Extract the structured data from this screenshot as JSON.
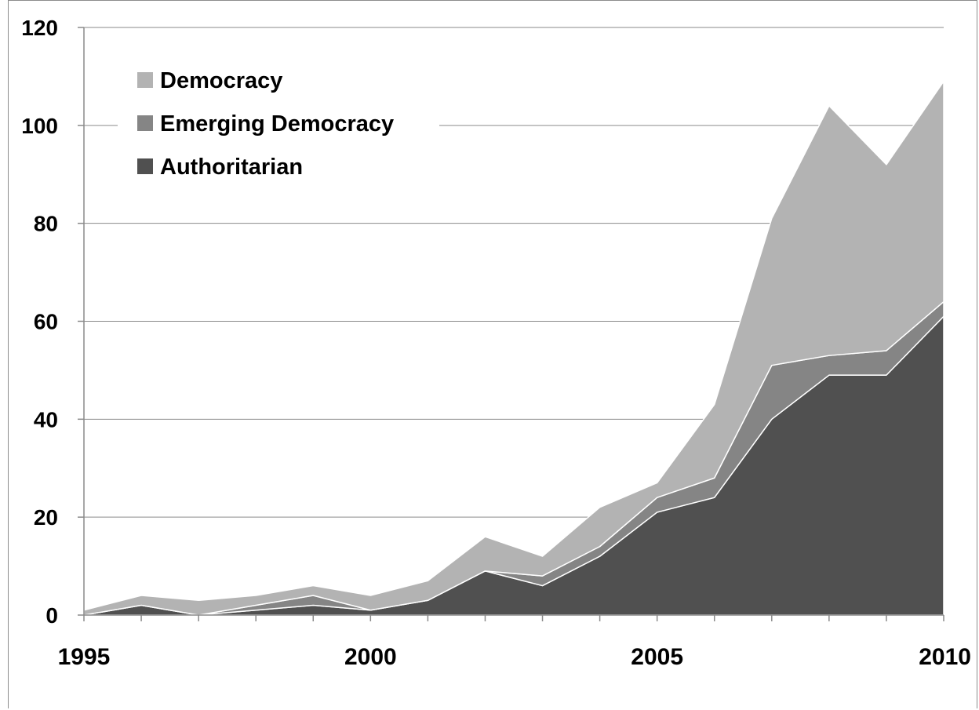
{
  "chart_data": {
    "type": "area",
    "stacked": true,
    "x": [
      1995,
      1996,
      1997,
      1998,
      1999,
      2000,
      2001,
      2002,
      2003,
      2004,
      2005,
      2006,
      2007,
      2008,
      2009,
      2010
    ],
    "series": [
      {
        "name": "Authoritarian",
        "color": "#505050",
        "values": [
          0,
          2,
          0,
          1,
          2,
          1,
          3,
          9,
          6,
          12,
          21,
          24,
          40,
          49,
          49,
          61
        ]
      },
      {
        "name": "Emerging Democracy",
        "color": "#858585",
        "values": [
          0,
          0,
          0,
          1,
          2,
          0,
          0,
          0,
          2,
          2,
          3,
          4,
          11,
          4,
          5,
          3
        ]
      },
      {
        "name": "Democracy",
        "color": "#b3b3b3",
        "values": [
          1,
          2,
          3,
          2,
          2,
          3,
          4,
          7,
          4,
          8,
          3,
          15,
          30,
          51,
          38,
          45
        ]
      }
    ],
    "yticks": [
      0,
      20,
      40,
      60,
      80,
      100,
      120
    ],
    "xticks": [
      1995,
      2000,
      2005,
      2010
    ],
    "ylim": [
      0,
      120
    ],
    "xlim": [
      1995,
      2010
    ],
    "grid": true,
    "legend": "top-left",
    "title": "",
    "xlabel": "",
    "ylabel": ""
  }
}
